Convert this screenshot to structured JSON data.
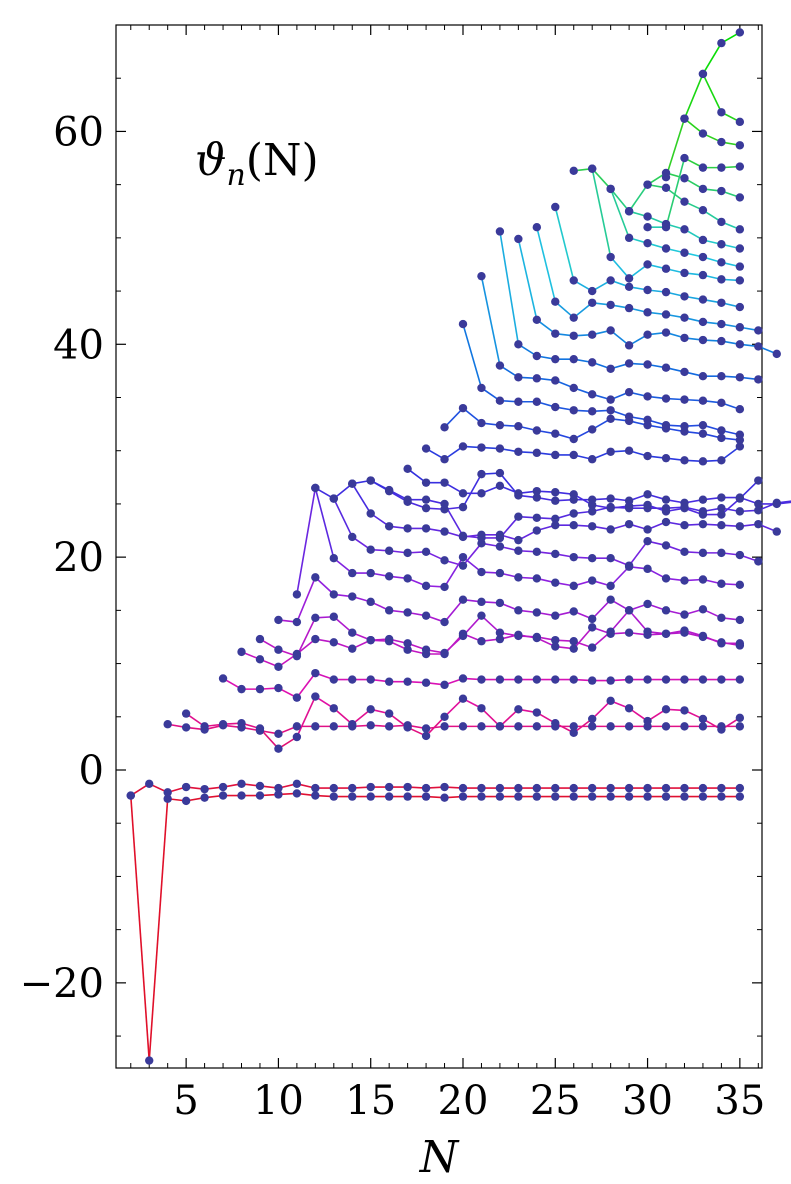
{
  "chart_data": {
    "type": "line",
    "title": "",
    "annotation_main": "ϑ",
    "annotation_sub": "n",
    "annotation_args": "(N)",
    "xlabel": "N",
    "ylabel": "",
    "xlim": [
      1.2,
      36.2
    ],
    "ylim": [
      -28,
      70
    ],
    "x_ticks": [
      5,
      10,
      15,
      20,
      25,
      30,
      35
    ],
    "x_tick_labels": [
      "5",
      "10",
      "15",
      "20",
      "25",
      "30",
      "35"
    ],
    "y_ticks": [
      -20,
      0,
      20,
      40,
      60
    ],
    "y_tick_labels": [
      "−20",
      "0",
      "20",
      "40",
      "60"
    ],
    "marker_color": "#3a3a9a",
    "color_ramp": [
      "#e0102a",
      "#e010b0",
      "#9020e0",
      "#3030e0",
      "#1070e0",
      "#20c8e0",
      "#30d020",
      "#00e000"
    ],
    "grid": false,
    "legend": "none",
    "series": [
      {
        "start": 2,
        "values": [
          -2.4,
          -27.3,
          -2.7,
          -2.9,
          -2.6,
          -2.4,
          -2.4,
          -2.4,
          -2.3,
          -2.2,
          -2.4,
          -2.5,
          -2.5,
          -2.5,
          -2.5,
          -2.5,
          -2.5,
          -2.6,
          -2.5,
          -2.5,
          -2.5,
          -2.5,
          -2.5,
          -2.5,
          -2.5,
          -2.5,
          -2.5,
          -2.5,
          -2.5,
          -2.5,
          -2.5,
          -2.5,
          -2.5,
          -2.5
        ]
      },
      {
        "start": 2,
        "values": [
          -2.4,
          -1.3,
          -2.1,
          -1.6,
          -1.8,
          -1.6,
          -1.3,
          -1.5,
          -1.7,
          -1.3,
          -1.7,
          -1.7,
          -1.7,
          -1.6,
          -1.6,
          -1.6,
          -1.7,
          -1.6,
          -1.7,
          -1.7,
          -1.7,
          -1.7,
          -1.7,
          -1.7,
          -1.7,
          -1.7,
          -1.7,
          -1.7,
          -1.7,
          -1.7,
          -1.7,
          -1.7,
          -1.7,
          -1.7
        ]
      },
      {
        "start": 4,
        "values": [
          4.3,
          4.0,
          3.8,
          4.2,
          4.0,
          3.7,
          3.4,
          4.1,
          4.1,
          4.1,
          4.1,
          4.2,
          4.1,
          4.2,
          3.9,
          4.1,
          4.1,
          4.1,
          4.1,
          4.1,
          4.1,
          4.1,
          4.1,
          4.1,
          4.1,
          4.1,
          4.1,
          4.1,
          4.1,
          4.1,
          4.1,
          4.1
        ]
      },
      {
        "start": 5,
        "values": [
          5.3,
          4.1,
          4.3,
          4.4,
          3.9,
          2.0,
          3.1,
          6.9,
          5.8,
          4.3,
          5.7,
          5.3,
          4.0,
          3.2,
          5.0,
          6.7,
          5.8,
          4.1,
          5.7,
          5.4,
          4.4,
          3.5,
          4.8,
          6.5,
          5.8,
          4.6,
          5.7,
          5.6,
          4.8,
          3.8,
          4.9
        ]
      },
      {
        "start": 7,
        "values": [
          8.6,
          7.6,
          7.6,
          7.7,
          6.8,
          9.1,
          8.5,
          8.5,
          8.5,
          8.3,
          8.3,
          8.2,
          8.0,
          8.6,
          8.5,
          8.5,
          8.5,
          8.5,
          8.5,
          8.5,
          8.4,
          8.4,
          8.5,
          8.5,
          8.5,
          8.5,
          8.5,
          8.5,
          8.5
        ]
      },
      {
        "start": 8,
        "values": [
          11.1,
          10.4,
          9.7,
          10.9,
          12.3,
          12.0,
          11.4,
          12.2,
          12.1,
          11.3,
          10.9,
          10.9,
          12.8,
          12.1,
          12.3,
          12.7,
          12.4,
          11.6,
          11.4,
          13.4,
          12.8,
          12.9,
          12.7,
          12.8,
          12.9,
          12.5,
          12.0,
          11.7
        ]
      },
      {
        "start": 9,
        "values": [
          12.3,
          11.3,
          10.7,
          14.3,
          14.4,
          12.9,
          12.2,
          12.3,
          11.9,
          11.3,
          11.0,
          12.6,
          14.5,
          12.9,
          12.6,
          12.5,
          12.2,
          12.1,
          11.5,
          13.0,
          15.0,
          13.0,
          12.8,
          13.1,
          12.6,
          11.9,
          11.9
        ]
      },
      {
        "start": 10,
        "values": [
          14.1,
          13.9,
          18.1,
          16.5,
          16.3,
          15.8,
          15.0,
          14.8,
          14.5,
          13.9,
          16.0,
          15.8,
          15.7,
          15.0,
          14.8,
          14.5,
          14.9,
          14.2,
          16.0,
          15.0,
          15.6,
          15.0,
          14.6,
          15.1,
          14.3,
          14.1
        ]
      },
      {
        "start": 11,
        "values": [
          16.5,
          26.5,
          19.9,
          18.5,
          18.5,
          18.2,
          18.0,
          17.3,
          17.2,
          20.0,
          18.6,
          18.5,
          18.1,
          18.0,
          17.6,
          17.3,
          17.8,
          17.3,
          19.1,
          18.9,
          18.0,
          17.8,
          17.9,
          17.5,
          17.4
        ]
      },
      {
        "start": 12,
        "values": [
          26.5,
          25.5,
          21.9,
          20.7,
          20.6,
          20.4,
          20.5,
          19.7,
          19.2,
          21.3,
          21.0,
          20.6,
          20.5,
          20.3,
          20.0,
          19.9,
          19.9,
          19.2,
          21.5,
          21.1,
          20.5,
          20.4,
          20.4,
          20.2,
          19.6
        ]
      },
      {
        "start": 13,
        "values": [
          25.5,
          26.9,
          24.1,
          22.9,
          22.7,
          22.7,
          22.4,
          21.9,
          22.1,
          22.1,
          21.6,
          22.5,
          23.0,
          23.0,
          22.9,
          22.6,
          23.1,
          22.6,
          23.3,
          23.0,
          23.1,
          23.0,
          22.9,
          23.1,
          22.4
        ]
      },
      {
        "start": 14,
        "values": [
          26.9,
          27.2,
          26.2,
          25.2,
          24.6,
          24.5,
          24.7,
          27.8,
          27.9,
          25.8,
          25.6,
          25.3,
          25.4,
          25.4,
          25.5,
          25.3,
          25.9,
          25.4,
          25.1,
          25.4,
          25.6,
          25.6,
          25.0,
          25.0,
          25.2
        ]
      },
      {
        "start": 15,
        "values": [
          27.2,
          26.3,
          25.4,
          25.4,
          25.0,
          22.0,
          21.8,
          21.8,
          23.8,
          23.7,
          23.6,
          24.1,
          24.3,
          24.7,
          24.6,
          24.6,
          24.6,
          24.7,
          24.3,
          24.6,
          24.3,
          24.4,
          25.1,
          25.3,
          26.2
        ]
      },
      {
        "start": 17,
        "values": [
          28.3,
          27.0,
          27.0,
          26.0,
          26.0,
          26.7,
          26.0,
          26.2,
          26.1,
          25.9,
          24.9,
          24.6,
          24.8,
          24.9,
          24.3,
          24.6,
          24.0,
          24.0,
          25.5,
          27.2
        ]
      },
      {
        "start": 18,
        "values": [
          30.2,
          29.2,
          30.4,
          30.3,
          30.2,
          29.9,
          29.8,
          29.6,
          29.6,
          29.2,
          29.9,
          30.0,
          29.5,
          29.3,
          29.1,
          29.0,
          29.1,
          30.4
        ]
      },
      {
        "start": 19,
        "values": [
          32.2,
          34.0,
          32.6,
          32.4,
          32.3,
          31.9,
          31.6,
          31.1,
          32.0,
          33.0,
          32.8,
          32.4,
          32.1,
          31.8,
          31.6,
          31.2,
          31.0
        ]
      },
      {
        "start": 20,
        "values": [
          41.9,
          35.9,
          34.7,
          34.6,
          34.6,
          34.1,
          33.8,
          33.7,
          33.8,
          33.2,
          32.9,
          32.4,
          32.3,
          32.4,
          31.9,
          31.5
        ]
      },
      {
        "start": 21,
        "values": [
          46.4,
          38.0,
          36.9,
          36.8,
          36.6,
          35.9,
          35.3,
          34.8,
          35.5,
          35.1,
          34.9,
          34.8,
          34.7,
          34.5,
          33.9
        ]
      },
      {
        "start": 22,
        "values": [
          50.6,
          40.0,
          38.9,
          38.6,
          38.6,
          38.3,
          37.7,
          38.2,
          38.1,
          37.8,
          37.4,
          37.0,
          37.0,
          36.9,
          36.7
        ]
      },
      {
        "start": 23,
        "values": [
          49.9,
          42.3,
          41.0,
          40.8,
          40.9,
          41.3,
          39.9,
          40.9,
          41.1,
          40.6,
          40.4,
          40.3,
          40.0,
          39.8,
          39.1
        ]
      },
      {
        "start": 24,
        "values": [
          51.0,
          44.0,
          42.5,
          43.9,
          43.7,
          43.4,
          43.0,
          42.8,
          42.5,
          42.1,
          41.9,
          41.6,
          41.3
        ]
      },
      {
        "start": 25,
        "values": [
          52.9,
          46.0,
          45.0,
          46.0,
          45.4,
          45.1,
          44.9,
          44.5,
          44.2,
          43.9,
          43.5
        ]
      },
      {
        "start": 26,
        "values": [
          56.3,
          56.5,
          48.2,
          46.2,
          47.5,
          47.1,
          46.7,
          46.5,
          46.1,
          46.0
        ]
      },
      {
        "start": 27,
        "values": [
          56.5,
          54.6,
          50.0,
          49.5,
          49.0,
          48.6,
          48.2,
          47.7,
          47.3
        ]
      },
      {
        "start": 28,
        "values": [
          54.6,
          52.5,
          52.0,
          51.3,
          50.8,
          49.8,
          49.4,
          49.0
        ]
      },
      {
        "start": 29,
        "values": [
          52.5,
          55.0,
          54.7,
          53.4,
          52.6,
          51.5,
          50.8
        ]
      },
      {
        "start": 30,
        "values": [
          55.0,
          56.1,
          55.6,
          54.6,
          54.4,
          53.8
        ]
      },
      {
        "start": 30,
        "values": [
          51.0,
          51.0,
          57.5,
          56.6,
          56.6,
          56.7
        ]
      },
      {
        "start": 31,
        "values": [
          55.7,
          61.2,
          59.8,
          59.0,
          58.7
        ]
      },
      {
        "start": 32,
        "values": [
          61.2,
          65.4,
          61.8,
          60.9
        ]
      },
      {
        "start": 33,
        "values": [
          65.4,
          68.3,
          69.3
        ]
      }
    ]
  }
}
